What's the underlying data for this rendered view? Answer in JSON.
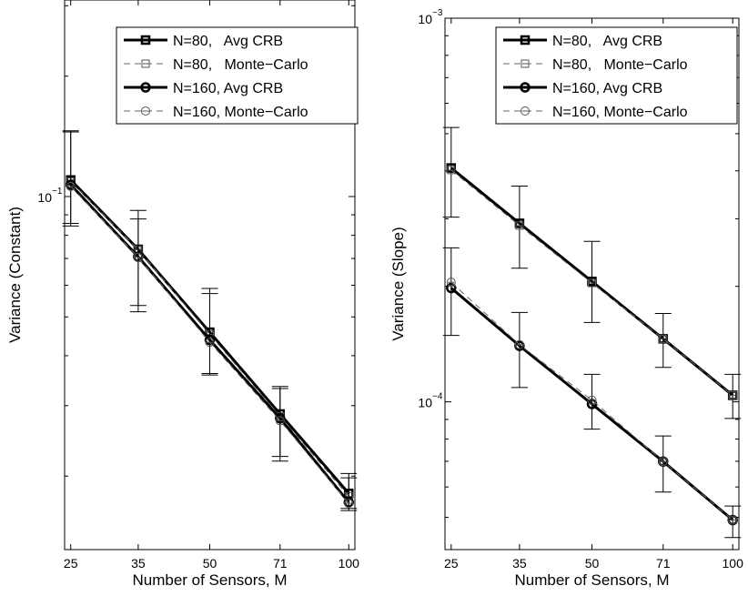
{
  "chart_data": [
    {
      "type": "line",
      "yscale": "log",
      "xlabel": "Number of Sensors, M",
      "ylabel": "Variance (Constant)",
      "x": [
        25,
        35,
        50,
        71,
        100
      ],
      "xtick_labels": [
        "25",
        "35",
        "50",
        "71",
        "100"
      ],
      "ylim": [
        0.0131,
        0.31
      ],
      "ytick_base": "10",
      "ytick_exponents": [
        "−1"
      ],
      "legend_position": "top-right",
      "series": [
        {
          "name": "N=80,   Avg CRB",
          "marker": "square",
          "style": "solid-thick",
          "values": [
            0.11,
            0.0738,
            0.0458,
            0.0286,
            0.0181
          ],
          "err_low": [
            0.0844,
            0.0534,
            0.0358,
            0.0224,
            0.0166
          ],
          "err_high": [
            0.146,
            0.0923,
            0.0572,
            0.0331,
            0.0203
          ]
        },
        {
          "name": "N=80,   Monte−Carlo",
          "marker": "square",
          "style": "dashed-thin",
          "values": [
            0.109,
            0.0737,
            0.0452,
            0.0282,
            0.0178
          ]
        },
        {
          "name": "N=160, Avg CRB",
          "marker": "circle",
          "style": "solid-thick",
          "values": [
            0.107,
            0.0707,
            0.0438,
            0.0279,
            0.0172
          ],
          "err_low": [
            0.0857,
            0.0515,
            0.0361,
            0.0218,
            0.0164
          ],
          "err_high": [
            0.145,
            0.0879,
            0.0589,
            0.0335,
            0.0198
          ]
        },
        {
          "name": "N=160, Monte−Carlo",
          "marker": "circle",
          "style": "dashed-thin",
          "values": [
            0.106,
            0.0705,
            0.0432,
            0.0275,
            0.0171
          ]
        }
      ]
    },
    {
      "type": "line",
      "yscale": "log",
      "xlabel": "Number of Sensors, M",
      "ylabel": "Variance (Slope)",
      "x": [
        25,
        35,
        50,
        71,
        100
      ],
      "xtick_labels": [
        "25",
        "35",
        "50",
        "71",
        "100"
      ],
      "ylim": [
        4.12e-05,
        0.001
      ],
      "ytick_base": "10",
      "ytick_exponents": [
        "−4",
        "−3"
      ],
      "legend_position": "top-right",
      "series": [
        {
          "name": "N=80,   Avg CRB",
          "marker": "square",
          "style": "solid-thick",
          "values": [
            0.000407,
            0.000292,
            0.000206,
            0.000146,
            0.000104
          ],
          "err_low": [
            0.000303,
            0.000223,
            0.000161,
            0.000123,
            9.05e-05
          ],
          "err_high": [
            0.000519,
            0.000365,
            0.000262,
            0.00017,
            0.000118
          ]
        },
        {
          "name": "N=80,   Monte−Carlo",
          "marker": "square",
          "style": "dashed-thin",
          "values": [
            0.000402,
            0.000288,
            0.000204,
            0.000146,
            0.000104
          ]
        },
        {
          "name": "N=160, Avg CRB",
          "marker": "circle",
          "style": "solid-thick",
          "values": [
            0.000198,
            0.00014,
            9.87e-05,
            6.99e-05,
            4.92e-05
          ],
          "err_low": [
            0.000149,
            0.000109,
            8.49e-05,
            5.82e-05,
            4.43e-05
          ],
          "err_high": [
            0.000252,
            0.000171,
            0.000118,
            8.15e-05,
            5.35e-05
          ]
        },
        {
          "name": "N=160, Monte−Carlo",
          "marker": "circle",
          "style": "dashed-thin",
          "values": [
            0.000205,
            0.000141,
            0.000101,
            6.99e-05,
            4.92e-05
          ]
        }
      ]
    }
  ]
}
